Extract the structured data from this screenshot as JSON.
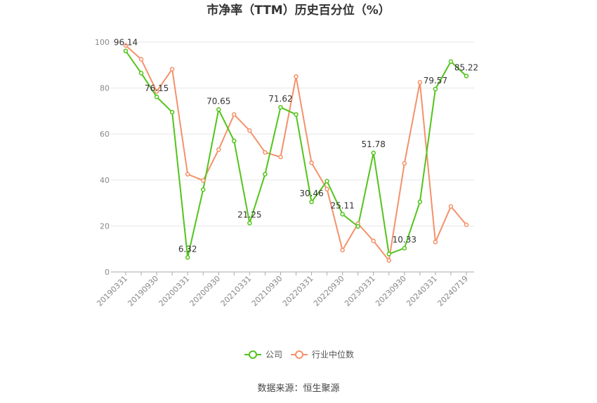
{
  "chart_data": {
    "type": "line",
    "title": "市净率（TTM）历史百分位（%）",
    "source": "数据来源：恒生聚源",
    "ylim": [
      0,
      100
    ],
    "y_ticks": [
      "0",
      "20",
      "40",
      "60",
      "80",
      "100"
    ],
    "x": [
      "20190331",
      "20190630",
      "20190930",
      "20191231",
      "20200331",
      "20200630",
      "20200930",
      "20201231",
      "20210331",
      "20210630",
      "20210930",
      "20211231",
      "20220331",
      "20220630",
      "20220930",
      "20221231",
      "20230331",
      "20230630",
      "20230930",
      "20231231",
      "20240331",
      "20240630",
      "20240719"
    ],
    "x_tick_labels": [
      "20190331",
      "20190930",
      "20200331",
      "20200930",
      "20210331",
      "20210930",
      "20220331",
      "20220930",
      "20230331",
      "20230930",
      "20240331",
      "20240719"
    ],
    "series": [
      {
        "name": "公司",
        "color": "#52c41a",
        "values": [
          96.14,
          86.5,
          76.15,
          69.5,
          6.32,
          35.8,
          70.65,
          57.0,
          21.25,
          42.5,
          71.62,
          68.5,
          30.46,
          39.5,
          25.11,
          19.8,
          51.78,
          7.8,
          10.33,
          30.5,
          79.57,
          91.5,
          85.22
        ]
      },
      {
        "name": "行业中位数",
        "color": "#f4916a",
        "values": [
          98.5,
          92.5,
          78.5,
          88.2,
          42.5,
          39.8,
          53.2,
          68.5,
          61.5,
          52.0,
          50.0,
          85.0,
          47.5,
          36.0,
          9.5,
          21.0,
          13.5,
          5.0,
          47.2,
          82.5,
          13.0,
          28.5,
          20.5
        ]
      }
    ],
    "data_labels": [
      {
        "index": 0,
        "text": "96.14"
      },
      {
        "index": 2,
        "text": "76.15"
      },
      {
        "index": 4,
        "text": "6.32"
      },
      {
        "index": 6,
        "text": "70.65"
      },
      {
        "index": 8,
        "text": "21.25"
      },
      {
        "index": 10,
        "text": "71.62"
      },
      {
        "index": 12,
        "text": "30.46"
      },
      {
        "index": 14,
        "text": "25.11"
      },
      {
        "index": 16,
        "text": "51.78"
      },
      {
        "index": 18,
        "text": "10.33"
      },
      {
        "index": 20,
        "text": "79.57"
      },
      {
        "index": 22,
        "text": "85.22"
      }
    ],
    "legend_position": "bottom-center",
    "grid": true
  }
}
